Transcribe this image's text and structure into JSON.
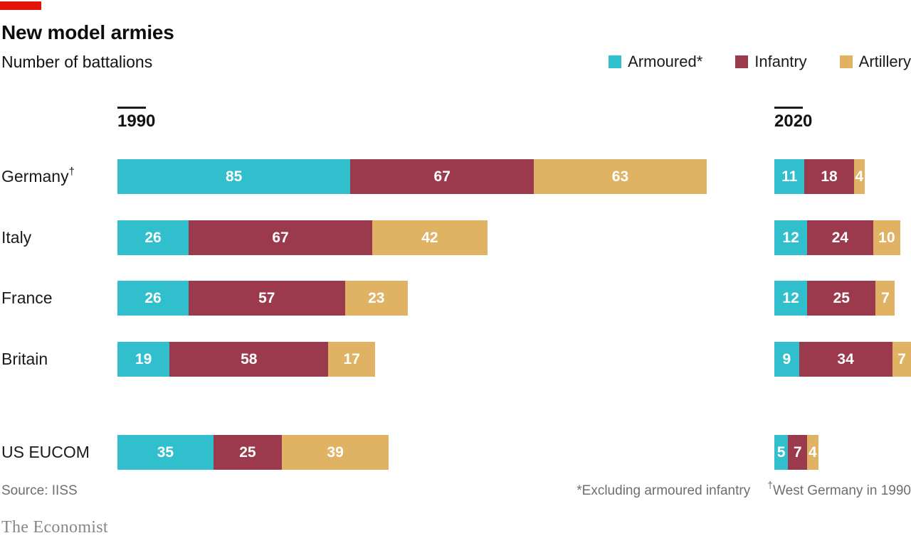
{
  "brand": {
    "wordmark": "The Economist",
    "tag_color": "#E3120B"
  },
  "header": {
    "title": "New model armies",
    "subtitle": "Number of battalions"
  },
  "legend": [
    {
      "label": "Armoured*",
      "color": "#31BFCE"
    },
    {
      "label": "Infantry",
      "color": "#9C3A4D"
    },
    {
      "label": "Artillery",
      "color": "#E0B264"
    }
  ],
  "footer": {
    "source": "Source: IISS",
    "footnote1": "*Excluding armoured infantry",
    "footnote2_sup": "†",
    "footnote2": "West Germany in 1990"
  },
  "chart_data": {
    "type": "bar",
    "orientation": "horizontal",
    "stacked": true,
    "title": "New model armies",
    "subtitle": "Number of battalions",
    "unit": "battalions",
    "panels": [
      "1990",
      "2020"
    ],
    "legend_position": "top-right",
    "series_names": [
      "Armoured*",
      "Infantry",
      "Artillery"
    ],
    "series_colors": [
      "#31BFCE",
      "#9C3A4D",
      "#E0B264"
    ],
    "categories": [
      "Germany†",
      "Italy",
      "France",
      "Britain",
      "US EUCOM"
    ],
    "values_1990": [
      [
        85,
        67,
        63
      ],
      [
        26,
        67,
        42
      ],
      [
        26,
        57,
        23
      ],
      [
        19,
        58,
        17
      ],
      [
        35,
        25,
        39
      ]
    ],
    "values_2020": [
      [
        11,
        18,
        4
      ],
      [
        12,
        24,
        10
      ],
      [
        12,
        25,
        7
      ],
      [
        9,
        34,
        7
      ],
      [
        5,
        7,
        4
      ]
    ]
  }
}
